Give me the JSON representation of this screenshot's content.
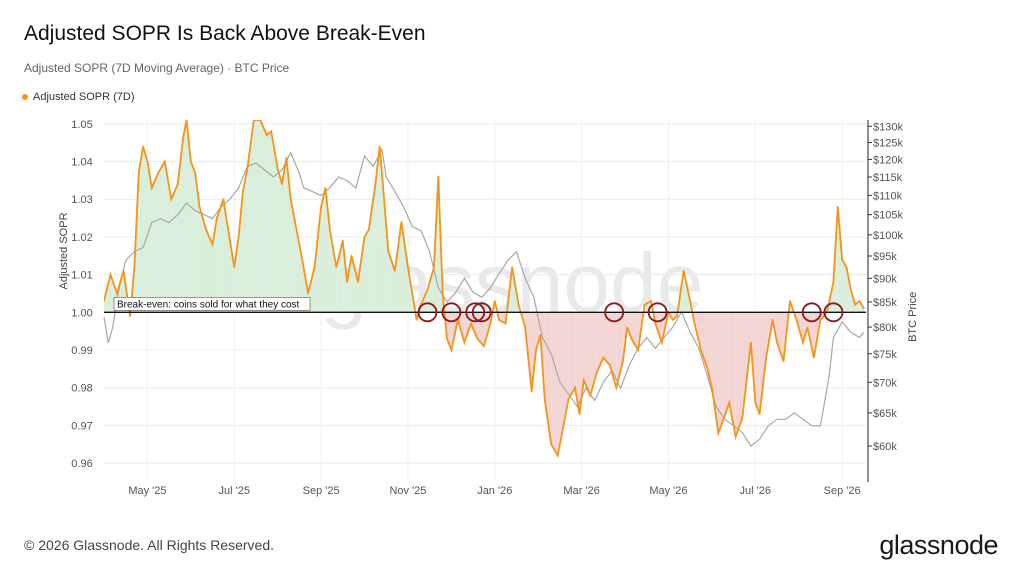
{
  "title": "Adjusted SOPR Is Back Above Break-Even",
  "subtitle": "Adjusted SOPR (7D Moving Average) · BTC Price",
  "footer": {
    "copyright": "© 2026 Glassnode. All Rights Reserved.",
    "brand": "glassnode",
    "watermark": "glassnode"
  },
  "chart_data": {
    "type": "line",
    "legend": [
      {
        "name": "Adjusted SOPR (7D)",
        "color": "#f7931a"
      }
    ],
    "legend_position": "top-left",
    "ylabel_left": "Adjusted SOPR",
    "ylabel_right": "BTC Price",
    "ylim_left": [
      0.955,
      1.051
    ],
    "ylim_right_log": [
      55000,
      132000
    ],
    "yticks_left": [
      1.05,
      1.04,
      1.03,
      1.02,
      1.01,
      1.0,
      0.99,
      0.98,
      0.97,
      0.96
    ],
    "yticks_left_labels": [
      "1.05",
      "1.04",
      "1.03",
      "1.02",
      "1.01",
      "1.00",
      "0.99",
      "0.98",
      "0.97",
      "0.96"
    ],
    "yticks_right": [
      130000,
      125000,
      120000,
      115000,
      110000,
      105000,
      100000,
      95000,
      90000,
      85000,
      80000,
      75000,
      70000,
      65000,
      60000
    ],
    "yticks_right_labels": [
      "$130k",
      "$125k",
      "$120k",
      "$115k",
      "$110k",
      "$105k",
      "$100k",
      "$95k",
      "$90k",
      "$85k",
      "$80k",
      "$75k",
      "$70k",
      "$65k",
      "$60k"
    ],
    "xticks": [
      {
        "label": "May '25",
        "month": 1
      },
      {
        "label": "Jul '25",
        "month": 3
      },
      {
        "label": "Sep '25",
        "month": 5
      },
      {
        "label": "Nov '25",
        "month": 7
      },
      {
        "label": "Jan '26",
        "month": 9
      },
      {
        "label": "Mar '26",
        "month": 11
      },
      {
        "label": "May '26",
        "month": 13
      },
      {
        "label": "Jul '26",
        "month": 15
      },
      {
        "label": "Sep '26",
        "month": 17
      }
    ],
    "x_range_months": [
      0,
      17.55
    ],
    "grid": true,
    "break_even": {
      "value": 1.0,
      "label": "Break-even: coins sold for what they cost"
    },
    "series": [
      {
        "name": "Adjusted SOPR (7D)",
        "color": "#f7931a",
        "axis": "left",
        "points": [
          [
            0.0,
            1.003
          ],
          [
            0.15,
            1.01
          ],
          [
            0.3,
            1.005
          ],
          [
            0.45,
            1.011
          ],
          [
            0.6,
            0.999
          ],
          [
            0.7,
            1.012
          ],
          [
            0.8,
            1.037
          ],
          [
            0.9,
            1.044
          ],
          [
            1.0,
            1.04
          ],
          [
            1.1,
            1.033
          ],
          [
            1.25,
            1.037
          ],
          [
            1.4,
            1.04
          ],
          [
            1.55,
            1.03
          ],
          [
            1.7,
            1.034
          ],
          [
            1.82,
            1.046
          ],
          [
            1.9,
            1.051
          ],
          [
            2.0,
            1.04
          ],
          [
            2.1,
            1.037
          ],
          [
            2.2,
            1.028
          ],
          [
            2.35,
            1.022
          ],
          [
            2.5,
            1.018
          ],
          [
            2.6,
            1.025
          ],
          [
            2.75,
            1.03
          ],
          [
            2.9,
            1.019
          ],
          [
            3.0,
            1.012
          ],
          [
            3.1,
            1.02
          ],
          [
            3.2,
            1.032
          ],
          [
            3.3,
            1.038
          ],
          [
            3.45,
            1.051
          ],
          [
            3.6,
            1.051
          ],
          [
            3.75,
            1.047
          ],
          [
            3.85,
            1.048
          ],
          [
            4.0,
            1.038
          ],
          [
            4.1,
            1.034
          ],
          [
            4.2,
            1.041
          ],
          [
            4.3,
            1.03
          ],
          [
            4.4,
            1.024
          ],
          [
            4.55,
            1.015
          ],
          [
            4.7,
            1.005
          ],
          [
            4.85,
            1.012
          ],
          [
            5.0,
            1.028
          ],
          [
            5.1,
            1.033
          ],
          [
            5.2,
            1.022
          ],
          [
            5.35,
            1.012
          ],
          [
            5.5,
            1.019
          ],
          [
            5.6,
            1.008
          ],
          [
            5.7,
            1.015
          ],
          [
            5.85,
            1.008
          ],
          [
            6.0,
            1.02
          ],
          [
            6.1,
            1.022
          ],
          [
            6.25,
            1.034
          ],
          [
            6.35,
            1.044
          ],
          [
            6.45,
            1.03
          ],
          [
            6.55,
            1.016
          ],
          [
            6.7,
            1.011
          ],
          [
            6.85,
            1.024
          ],
          [
            7.0,
            1.012
          ],
          [
            7.1,
            1.005
          ],
          [
            7.2,
            0.998
          ],
          [
            7.3,
            1.002
          ],
          [
            7.45,
            1.006
          ],
          [
            7.6,
            1.012
          ],
          [
            7.7,
            1.036
          ],
          [
            7.8,
            1.005
          ],
          [
            7.9,
            0.993
          ],
          [
            8.0,
            0.99
          ],
          [
            8.15,
            0.998
          ],
          [
            8.3,
            0.992
          ],
          [
            8.45,
            0.997
          ],
          [
            8.6,
            0.993
          ],
          [
            8.75,
            0.991
          ],
          [
            8.9,
            0.997
          ],
          [
            9.0,
            1.003
          ],
          [
            9.1,
            0.998
          ],
          [
            9.25,
            0.997
          ],
          [
            9.4,
            1.012
          ],
          [
            9.55,
            1.002
          ],
          [
            9.7,
            0.996
          ],
          [
            9.85,
            0.979
          ],
          [
            9.95,
            0.99
          ],
          [
            10.05,
            0.994
          ],
          [
            10.15,
            0.977
          ],
          [
            10.3,
            0.965
          ],
          [
            10.45,
            0.962
          ],
          [
            10.55,
            0.968
          ],
          [
            10.7,
            0.977
          ],
          [
            10.85,
            0.98
          ],
          [
            10.95,
            0.973
          ],
          [
            11.05,
            0.982
          ],
          [
            11.2,
            0.978
          ],
          [
            11.35,
            0.984
          ],
          [
            11.5,
            0.988
          ],
          [
            11.65,
            0.986
          ],
          [
            11.8,
            0.98
          ],
          [
            11.95,
            0.987
          ],
          [
            12.05,
            0.996
          ],
          [
            12.15,
            0.993
          ],
          [
            12.3,
            0.99
          ],
          [
            12.45,
            1.002
          ],
          [
            12.6,
            1.003
          ],
          [
            12.7,
            0.997
          ],
          [
            12.85,
            0.992
          ],
          [
            13.0,
            1.0
          ],
          [
            13.1,
            0.998
          ],
          [
            13.2,
            0.999
          ],
          [
            13.35,
            1.011
          ],
          [
            13.5,
            1.003
          ],
          [
            13.6,
            0.997
          ],
          [
            13.75,
            0.99
          ],
          [
            13.9,
            0.985
          ],
          [
            14.0,
            0.98
          ],
          [
            14.15,
            0.968
          ],
          [
            14.25,
            0.971
          ],
          [
            14.4,
            0.976
          ],
          [
            14.55,
            0.967
          ],
          [
            14.7,
            0.972
          ],
          [
            14.8,
            0.982
          ],
          [
            14.9,
            0.992
          ],
          [
            15.0,
            0.976
          ],
          [
            15.1,
            0.973
          ],
          [
            15.25,
            0.988
          ],
          [
            15.4,
            0.998
          ],
          [
            15.5,
            0.992
          ],
          [
            15.65,
            0.987
          ],
          [
            15.8,
            1.003
          ],
          [
            15.95,
            0.998
          ],
          [
            16.1,
            0.992
          ],
          [
            16.2,
            0.996
          ],
          [
            16.35,
            0.988
          ],
          [
            16.5,
            0.998
          ],
          [
            16.65,
            1.0
          ],
          [
            16.8,
            1.008
          ],
          [
            16.9,
            1.028
          ],
          [
            17.0,
            1.014
          ],
          [
            17.1,
            1.012
          ],
          [
            17.2,
            1.006
          ],
          [
            17.3,
            1.002
          ],
          [
            17.4,
            1.003
          ],
          [
            17.5,
            1.001
          ]
        ]
      },
      {
        "name": "BTC Price",
        "color": "#a8a8a8",
        "axis": "right",
        "points": [
          [
            0.0,
            82000
          ],
          [
            0.1,
            77000
          ],
          [
            0.2,
            80000
          ],
          [
            0.35,
            88000
          ],
          [
            0.5,
            94000
          ],
          [
            0.7,
            96000
          ],
          [
            0.9,
            97000
          ],
          [
            1.1,
            103000
          ],
          [
            1.3,
            104000
          ],
          [
            1.5,
            103000
          ],
          [
            1.7,
            105000
          ],
          [
            1.9,
            108000
          ],
          [
            2.1,
            106000
          ],
          [
            2.3,
            105000
          ],
          [
            2.5,
            104000
          ],
          [
            2.7,
            107000
          ],
          [
            2.9,
            109000
          ],
          [
            3.1,
            112000
          ],
          [
            3.3,
            118000
          ],
          [
            3.5,
            119000
          ],
          [
            3.7,
            117000
          ],
          [
            3.9,
            115000
          ],
          [
            4.1,
            117000
          ],
          [
            4.3,
            122000
          ],
          [
            4.5,
            116000
          ],
          [
            4.6,
            112000
          ],
          [
            4.8,
            111000
          ],
          [
            5.0,
            110000
          ],
          [
            5.2,
            112000
          ],
          [
            5.4,
            115000
          ],
          [
            5.6,
            114000
          ],
          [
            5.8,
            112000
          ],
          [
            6.0,
            121000
          ],
          [
            6.2,
            118000
          ],
          [
            6.4,
            123000
          ],
          [
            6.5,
            115000
          ],
          [
            6.7,
            111000
          ],
          [
            6.9,
            107000
          ],
          [
            7.1,
            102000
          ],
          [
            7.3,
            101000
          ],
          [
            7.5,
            96000
          ],
          [
            7.7,
            88000
          ],
          [
            7.9,
            85000
          ],
          [
            8.1,
            87000
          ],
          [
            8.3,
            90000
          ],
          [
            8.5,
            87000
          ],
          [
            8.7,
            86000
          ],
          [
            8.9,
            88000
          ],
          [
            9.1,
            91000
          ],
          [
            9.3,
            94000
          ],
          [
            9.5,
            96000
          ],
          [
            9.7,
            90000
          ],
          [
            9.9,
            86000
          ],
          [
            10.1,
            78000
          ],
          [
            10.3,
            75000
          ],
          [
            10.5,
            70000
          ],
          [
            10.7,
            68000
          ],
          [
            10.9,
            66000
          ],
          [
            11.1,
            69000
          ],
          [
            11.3,
            67000
          ],
          [
            11.5,
            70000
          ],
          [
            11.7,
            72000
          ],
          [
            11.9,
            69000
          ],
          [
            12.1,
            73000
          ],
          [
            12.3,
            76000
          ],
          [
            12.5,
            78000
          ],
          [
            12.7,
            76000
          ],
          [
            12.9,
            78000
          ],
          [
            13.1,
            80000
          ],
          [
            13.3,
            83000
          ],
          [
            13.5,
            79000
          ],
          [
            13.7,
            76000
          ],
          [
            13.9,
            71000
          ],
          [
            14.1,
            66000
          ],
          [
            14.3,
            64000
          ],
          [
            14.5,
            63000
          ],
          [
            14.7,
            62000
          ],
          [
            14.9,
            60000
          ],
          [
            15.1,
            61000
          ],
          [
            15.3,
            63000
          ],
          [
            15.5,
            64000
          ],
          [
            15.7,
            64000
          ],
          [
            15.9,
            65000
          ],
          [
            16.1,
            64000
          ],
          [
            16.3,
            63000
          ],
          [
            16.5,
            63000
          ],
          [
            16.7,
            71000
          ],
          [
            16.8,
            78000
          ],
          [
            17.0,
            81000
          ],
          [
            17.2,
            79000
          ],
          [
            17.4,
            78000
          ],
          [
            17.5,
            79000
          ]
        ]
      }
    ],
    "break_even_crossings_months": [
      7.45,
      8.0,
      8.55,
      8.7,
      11.75,
      12.75,
      16.3,
      16.8
    ]
  }
}
